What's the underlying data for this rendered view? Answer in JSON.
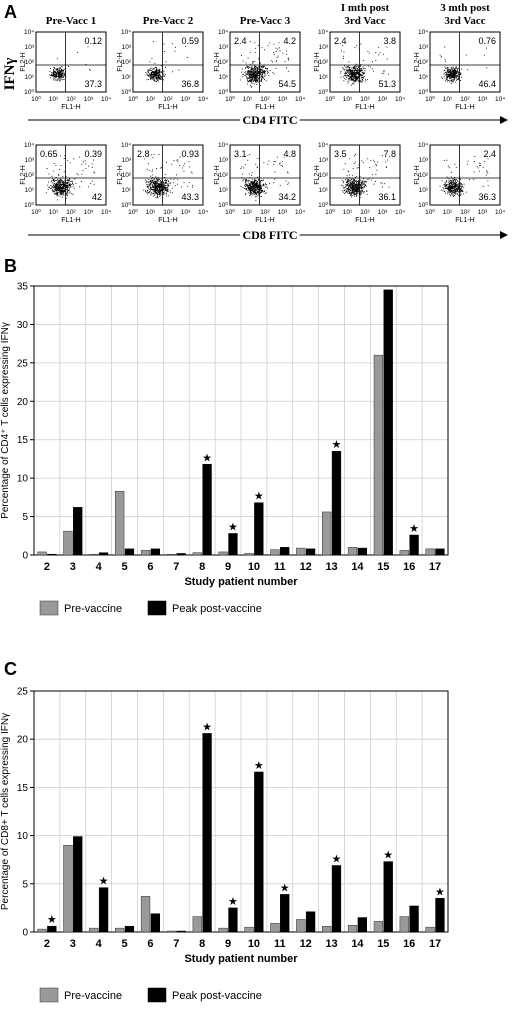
{
  "panel_a": {
    "letter": "A",
    "y_axis_label": "IFNγ",
    "plot_x_label": "FL1-H",
    "plot_y_label": "FL2-H",
    "tick_labels": [
      "10⁰",
      "10¹",
      "10²",
      "10³",
      "10⁴"
    ],
    "columns": [
      {
        "line1": "Pre-Vacc 1",
        "line2": ""
      },
      {
        "line1": "Pre-Vacc 2",
        "line2": ""
      },
      {
        "line1": "Pre-Vacc 3",
        "line2": ""
      },
      {
        "line1": "I mth post",
        "line2": "3rd Vacc"
      },
      {
        "line1": "3 mth post",
        "line2": "3rd Vacc"
      }
    ],
    "rows": [
      {
        "axis_label": "CD4 FITC",
        "plots": [
          {
            "ul": "",
            "ur": "0.12",
            "lr": "37.3",
            "density": 0.35
          },
          {
            "ul": "",
            "ur": "0.59",
            "lr": "36.8",
            "density": 0.4
          },
          {
            "ul": "2.4",
            "ur": "4.2",
            "lr": "54.5",
            "density": 0.95
          },
          {
            "ul": "2.4",
            "ur": "3.8",
            "lr": "51.3",
            "density": 0.8
          },
          {
            "ul": "",
            "ur": "0.76",
            "lr": "46.4",
            "density": 0.5
          }
        ]
      },
      {
        "axis_label": "CD8 FITC",
        "plots": [
          {
            "ul": "0.65",
            "ur": "0.39",
            "lr": "42",
            "density": 0.9
          },
          {
            "ul": "2.8",
            "ur": "0.93",
            "lr": "43.3",
            "density": 0.95
          },
          {
            "ul": "3.1",
            "ur": "4.8",
            "lr": "34.2",
            "density": 0.85
          },
          {
            "ul": "3.5",
            "ur": "7.8",
            "lr": "36.1",
            "density": 0.9
          },
          {
            "ul": "",
            "ur": "2.4",
            "lr": "36.3",
            "density": 0.7
          }
        ]
      }
    ]
  },
  "colors": {
    "pre": "#999999",
    "post": "#000000",
    "grid": "#cfcfcf"
  },
  "chart_data": [
    {
      "panel": "B",
      "type": "bar",
      "ylabel": "Percentage of CD4⁺ T cells expressing IFNγ",
      "xlabel": "Study patient number",
      "ylim": [
        0,
        35
      ],
      "yticks": [
        0,
        5,
        10,
        15,
        20,
        25,
        30,
        35
      ],
      "categories": [
        "2",
        "3",
        "4",
        "5",
        "6",
        "7",
        "8",
        "9",
        "10",
        "11",
        "12",
        "13",
        "14",
        "15",
        "16",
        "17"
      ],
      "series": [
        {
          "name": "Pre-vaccine",
          "values": [
            0.4,
            3.1,
            0.1,
            8.3,
            0.6,
            0.1,
            0.3,
            0.4,
            0.2,
            0.7,
            0.9,
            5.6,
            1.0,
            26.0,
            0.6,
            0.8
          ]
        },
        {
          "name": "Peak post-vaccine",
          "values": [
            0.1,
            6.2,
            0.3,
            0.8,
            0.8,
            0.2,
            11.8,
            2.8,
            6.8,
            1.0,
            0.8,
            13.5,
            0.9,
            34.5,
            2.6,
            0.8
          ]
        }
      ],
      "significant": [
        false,
        false,
        false,
        false,
        false,
        false,
        true,
        true,
        true,
        false,
        false,
        true,
        false,
        false,
        true,
        false
      ],
      "legend": [
        "Pre-vaccine",
        "Peak post-vaccine"
      ],
      "grid": true
    },
    {
      "panel": "C",
      "type": "bar",
      "ylabel": "Percentage of CD8+ T cells expressing IFNγ",
      "xlabel": "Study patient number",
      "ylim": [
        0,
        25
      ],
      "yticks": [
        0,
        5,
        10,
        15,
        20,
        25
      ],
      "categories": [
        "2",
        "3",
        "4",
        "5",
        "6",
        "7",
        "8",
        "9",
        "10",
        "11",
        "12",
        "13",
        "14",
        "15",
        "16",
        "17"
      ],
      "series": [
        {
          "name": "Pre-vaccine",
          "values": [
            0.3,
            9.0,
            0.4,
            0.4,
            3.7,
            0.1,
            1.6,
            0.4,
            0.5,
            0.9,
            1.3,
            0.6,
            0.7,
            1.1,
            1.6,
            0.5
          ]
        },
        {
          "name": "Peak post-vaccine",
          "values": [
            0.6,
            9.9,
            4.6,
            0.6,
            1.9,
            0.1,
            20.6,
            2.5,
            16.6,
            3.9,
            2.1,
            6.9,
            1.5,
            7.3,
            2.7,
            3.5
          ]
        }
      ],
      "significant": [
        true,
        false,
        true,
        false,
        false,
        false,
        true,
        true,
        true,
        true,
        false,
        true,
        false,
        true,
        false,
        true
      ],
      "legend": [
        "Pre-vaccine",
        "Peak post-vaccine"
      ],
      "grid": true
    }
  ]
}
